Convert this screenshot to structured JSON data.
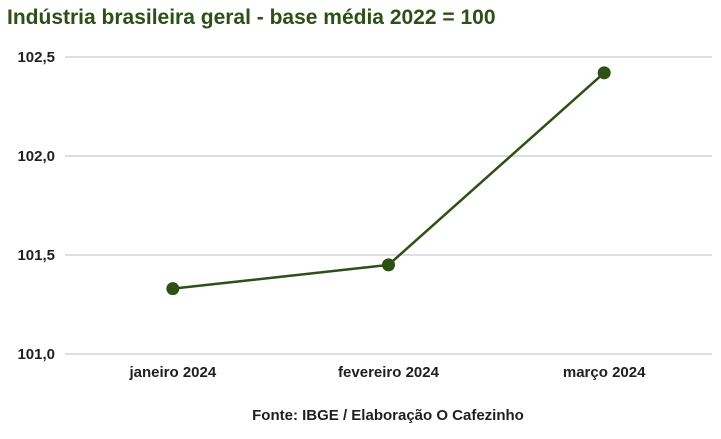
{
  "chart_data": {
    "type": "line",
    "title": "Indústria brasileira geral - base média 2022 = 100",
    "categories": [
      "janeiro 2024",
      "fevereiro 2024",
      "março 2024"
    ],
    "series": [
      {
        "values": [
          101.33,
          101.45,
          102.42
        ]
      }
    ],
    "ylim": [
      101.0,
      102.5
    ],
    "yticks": [
      "101,0",
      "101,5",
      "102,0",
      "102,5"
    ],
    "grid": true,
    "line_color": "#2d5016",
    "source": "Fonte: IBGE / Elaboração O Cafezinho"
  }
}
